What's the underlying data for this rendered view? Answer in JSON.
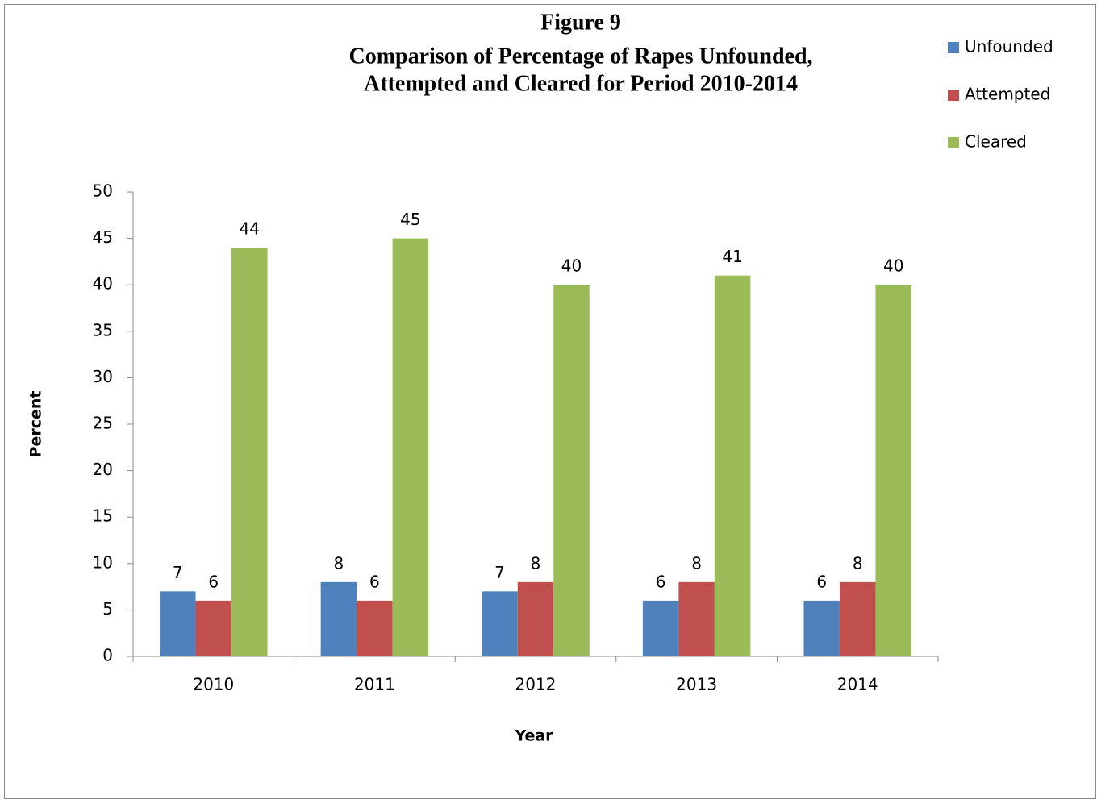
{
  "chart_data": {
    "type": "bar",
    "title": [
      "Figure 9",
      "Comparison of Percentage of Rapes Unfounded,",
      "Attempted and Cleared for Period 2010-2014"
    ],
    "x_label": "Year",
    "y_label": "Percent",
    "categories": [
      "2010",
      "2011",
      "2012",
      "2013",
      "2014"
    ],
    "series": [
      {
        "name": "Unfounded",
        "color": "#4f81bd",
        "values": [
          7,
          8,
          7,
          6,
          6
        ]
      },
      {
        "name": "Attempted",
        "color": "#c0504d",
        "values": [
          6,
          6,
          8,
          8,
          8
        ]
      },
      {
        "name": "Cleared",
        "color": "#9bbb59",
        "values": [
          44,
          45,
          40,
          41,
          40
        ]
      }
    ],
    "ylim": [
      0,
      50
    ],
    "yticks": [
      0,
      5,
      10,
      15,
      20,
      25,
      30,
      35,
      40,
      45,
      50
    ],
    "legend": "right"
  }
}
